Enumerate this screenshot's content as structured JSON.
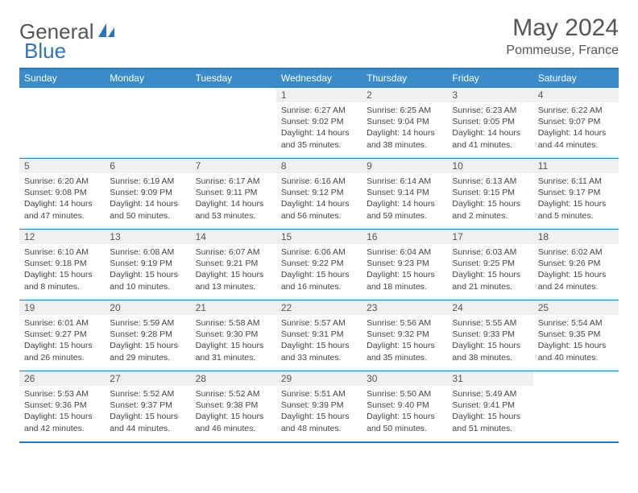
{
  "brand": {
    "part1": "General",
    "part2": "Blue"
  },
  "title": "May 2024",
  "location": "Pommeuse, France",
  "colors": {
    "header_bg": "#3b8bc8",
    "border": "#2e75b6",
    "daynum_bg": "#eef0f2",
    "text": "#444444"
  },
  "dayHeaders": [
    "Sunday",
    "Monday",
    "Tuesday",
    "Wednesday",
    "Thursday",
    "Friday",
    "Saturday"
  ],
  "weeks": [
    [
      null,
      null,
      null,
      {
        "n": "1",
        "sr": "6:27 AM",
        "ss": "9:02 PM",
        "dl": "14 hours and 35 minutes."
      },
      {
        "n": "2",
        "sr": "6:25 AM",
        "ss": "9:04 PM",
        "dl": "14 hours and 38 minutes."
      },
      {
        "n": "3",
        "sr": "6:23 AM",
        "ss": "9:05 PM",
        "dl": "14 hours and 41 minutes."
      },
      {
        "n": "4",
        "sr": "6:22 AM",
        "ss": "9:07 PM",
        "dl": "14 hours and 44 minutes."
      }
    ],
    [
      {
        "n": "5",
        "sr": "6:20 AM",
        "ss": "9:08 PM",
        "dl": "14 hours and 47 minutes."
      },
      {
        "n": "6",
        "sr": "6:19 AM",
        "ss": "9:09 PM",
        "dl": "14 hours and 50 minutes."
      },
      {
        "n": "7",
        "sr": "6:17 AM",
        "ss": "9:11 PM",
        "dl": "14 hours and 53 minutes."
      },
      {
        "n": "8",
        "sr": "6:16 AM",
        "ss": "9:12 PM",
        "dl": "14 hours and 56 minutes."
      },
      {
        "n": "9",
        "sr": "6:14 AM",
        "ss": "9:14 PM",
        "dl": "14 hours and 59 minutes."
      },
      {
        "n": "10",
        "sr": "6:13 AM",
        "ss": "9:15 PM",
        "dl": "15 hours and 2 minutes."
      },
      {
        "n": "11",
        "sr": "6:11 AM",
        "ss": "9:17 PM",
        "dl": "15 hours and 5 minutes."
      }
    ],
    [
      {
        "n": "12",
        "sr": "6:10 AM",
        "ss": "9:18 PM",
        "dl": "15 hours and 8 minutes."
      },
      {
        "n": "13",
        "sr": "6:08 AM",
        "ss": "9:19 PM",
        "dl": "15 hours and 10 minutes."
      },
      {
        "n": "14",
        "sr": "6:07 AM",
        "ss": "9:21 PM",
        "dl": "15 hours and 13 minutes."
      },
      {
        "n": "15",
        "sr": "6:06 AM",
        "ss": "9:22 PM",
        "dl": "15 hours and 16 minutes."
      },
      {
        "n": "16",
        "sr": "6:04 AM",
        "ss": "9:23 PM",
        "dl": "15 hours and 18 minutes."
      },
      {
        "n": "17",
        "sr": "6:03 AM",
        "ss": "9:25 PM",
        "dl": "15 hours and 21 minutes."
      },
      {
        "n": "18",
        "sr": "6:02 AM",
        "ss": "9:26 PM",
        "dl": "15 hours and 24 minutes."
      }
    ],
    [
      {
        "n": "19",
        "sr": "6:01 AM",
        "ss": "9:27 PM",
        "dl": "15 hours and 26 minutes."
      },
      {
        "n": "20",
        "sr": "5:59 AM",
        "ss": "9:28 PM",
        "dl": "15 hours and 29 minutes."
      },
      {
        "n": "21",
        "sr": "5:58 AM",
        "ss": "9:30 PM",
        "dl": "15 hours and 31 minutes."
      },
      {
        "n": "22",
        "sr": "5:57 AM",
        "ss": "9:31 PM",
        "dl": "15 hours and 33 minutes."
      },
      {
        "n": "23",
        "sr": "5:56 AM",
        "ss": "9:32 PM",
        "dl": "15 hours and 35 minutes."
      },
      {
        "n": "24",
        "sr": "5:55 AM",
        "ss": "9:33 PM",
        "dl": "15 hours and 38 minutes."
      },
      {
        "n": "25",
        "sr": "5:54 AM",
        "ss": "9:35 PM",
        "dl": "15 hours and 40 minutes."
      }
    ],
    [
      {
        "n": "26",
        "sr": "5:53 AM",
        "ss": "9:36 PM",
        "dl": "15 hours and 42 minutes."
      },
      {
        "n": "27",
        "sr": "5:52 AM",
        "ss": "9:37 PM",
        "dl": "15 hours and 44 minutes."
      },
      {
        "n": "28",
        "sr": "5:52 AM",
        "ss": "9:38 PM",
        "dl": "15 hours and 46 minutes."
      },
      {
        "n": "29",
        "sr": "5:51 AM",
        "ss": "9:39 PM",
        "dl": "15 hours and 48 minutes."
      },
      {
        "n": "30",
        "sr": "5:50 AM",
        "ss": "9:40 PM",
        "dl": "15 hours and 50 minutes."
      },
      {
        "n": "31",
        "sr": "5:49 AM",
        "ss": "9:41 PM",
        "dl": "15 hours and 51 minutes."
      },
      null
    ]
  ],
  "labels": {
    "sunrise": "Sunrise: ",
    "sunset": "Sunset: ",
    "daylight": "Daylight: "
  }
}
